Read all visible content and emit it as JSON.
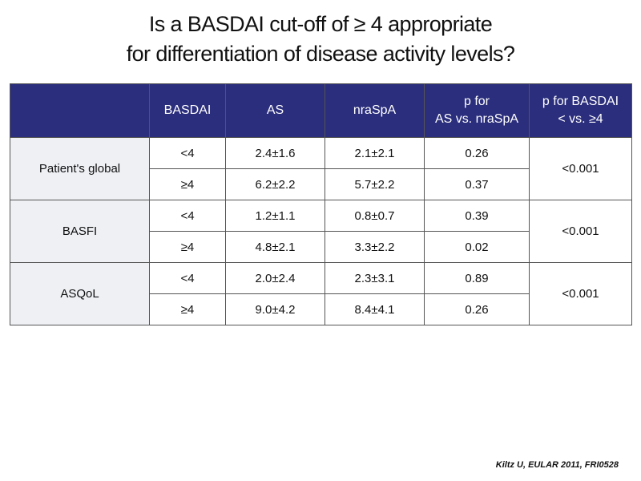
{
  "title": {
    "line1": "Is a BASDAI cut-off of ≥ 4 appropriate",
    "line2": "for differentiation of disease activity levels?"
  },
  "table": {
    "headers": {
      "basdai": "BASDAI",
      "as": "AS",
      "nraspa": "nraSpA",
      "p_as_line1": "p for",
      "p_as_line2": "AS vs. nraSpA",
      "p_basdai_line1": "p for BASDAI",
      "p_basdai_line2": "< vs. ≥4"
    },
    "groups": [
      {
        "label": "Patient's global",
        "p_basdai": "<0.001",
        "rows": [
          {
            "basdai": "<4",
            "as": "2.4±1.6",
            "nraspa": "2.1±2.1",
            "p": "0.26"
          },
          {
            "basdai": "≥4",
            "as": "6.2±2.2",
            "nraspa": "5.7±2.2",
            "p": "0.37"
          }
        ]
      },
      {
        "label": "BASFI",
        "p_basdai": "<0.001",
        "rows": [
          {
            "basdai": "<4",
            "as": "1.2±1.1",
            "nraspa": "0.8±0.7",
            "p": "0.39"
          },
          {
            "basdai": "≥4",
            "as": "4.8±2.1",
            "nraspa": "3.3±2.2",
            "p": "0.02"
          }
        ]
      },
      {
        "label": "ASQoL",
        "p_basdai": "<0.001",
        "rows": [
          {
            "basdai": "<4",
            "as": "2.0±2.4",
            "nraspa": "2.3±3.1",
            "p": "0.89"
          },
          {
            "basdai": "≥4",
            "as": "9.0±4.2",
            "nraspa": "8.4±4.1",
            "p": "0.26"
          }
        ]
      }
    ]
  },
  "footer": "Kiltz U, EULAR 2011, FRI0528",
  "colors": {
    "header_bg": "#2b2e7c",
    "group_bg": "#eef0f4"
  }
}
